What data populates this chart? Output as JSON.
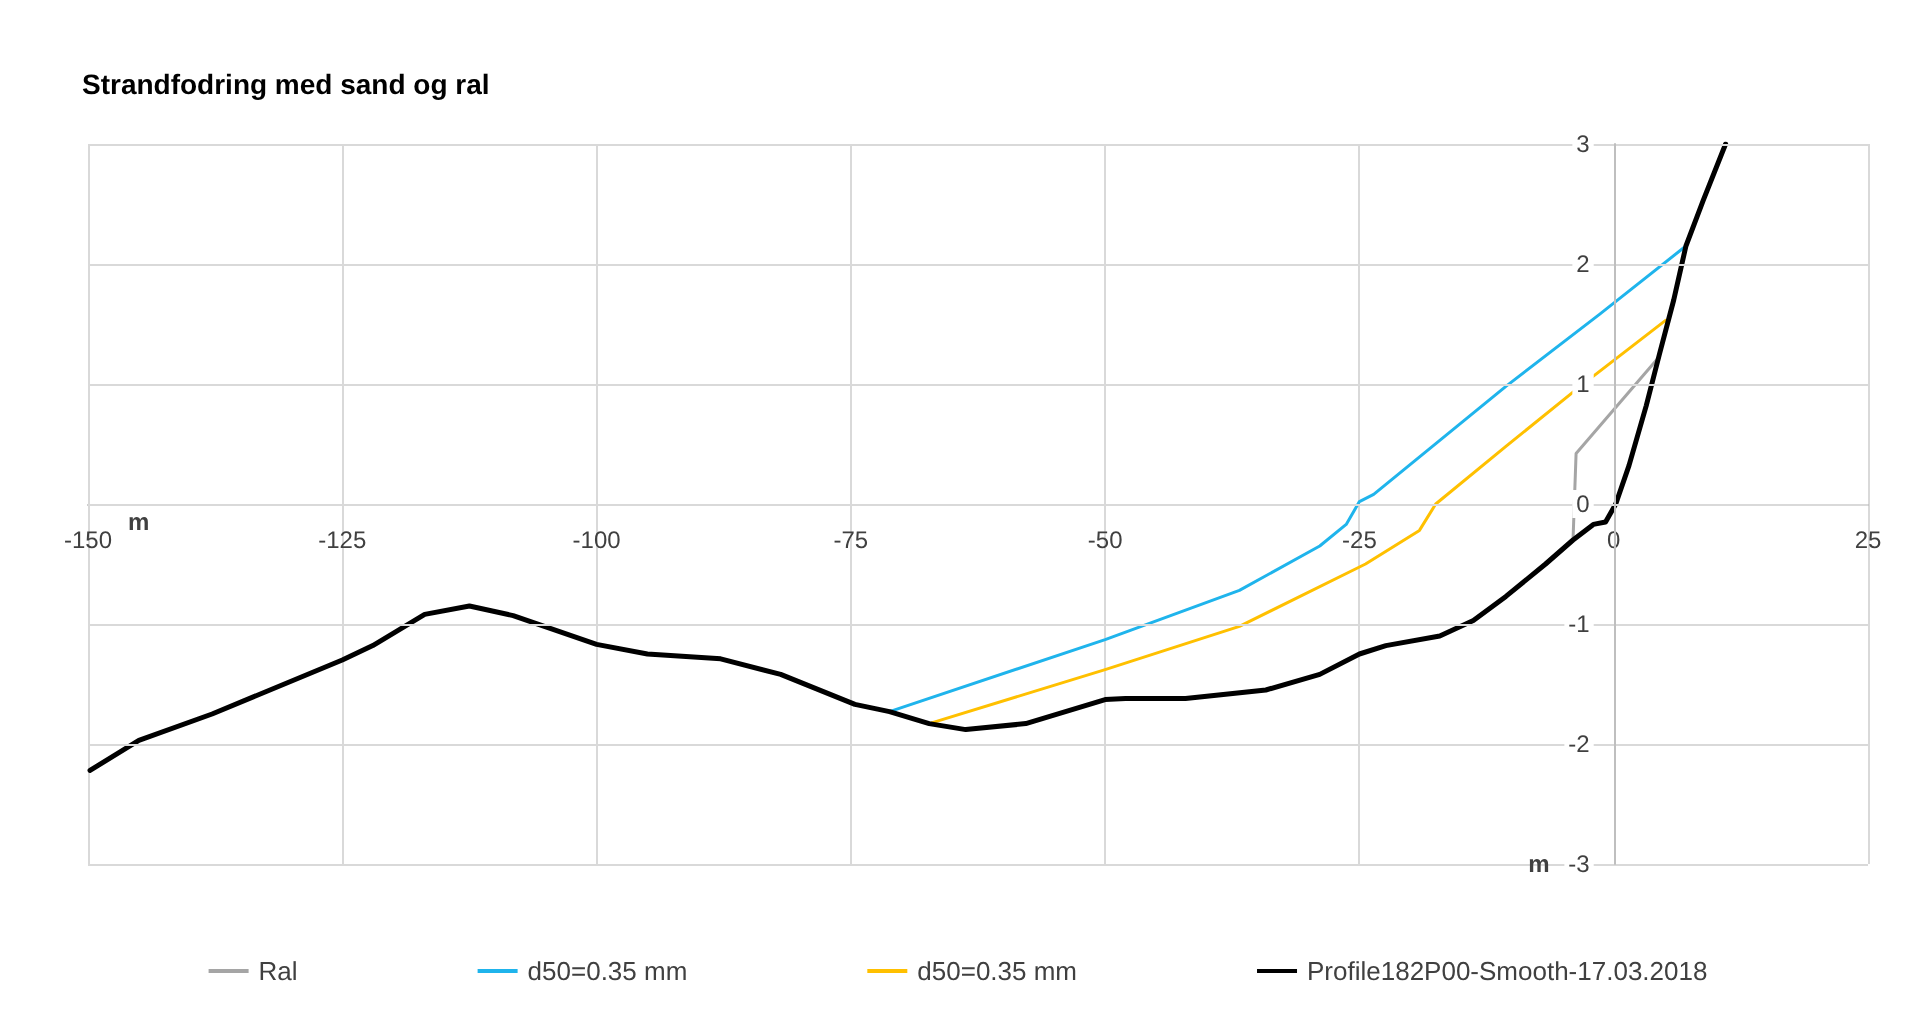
{
  "chart_data": {
    "type": "line",
    "title": "Strandfodring med sand og ral",
    "xlabel": "m",
    "ylabel": "m",
    "xlim": [
      -150,
      25
    ],
    "xticks": [
      -150,
      -125,
      -100,
      -75,
      -50,
      -25,
      0,
      25
    ],
    "ylim": [
      -3,
      3
    ],
    "yticks": [
      -3,
      -2,
      -1,
      0,
      1,
      2,
      3
    ],
    "grid": true,
    "legend": "bottom",
    "marker": "none",
    "line_style": "solid",
    "series": [
      {
        "name": "Ral",
        "color": "#a5a5a5",
        "x": [
          -4,
          -3.7,
          4.5
        ],
        "values": [
          -0.3,
          0.42,
          1.23
        ]
      },
      {
        "name": "d50=0.35 mm",
        "color": "#1fb4ec",
        "x": [
          -71.2,
          -50,
          -36.8,
          -28.9,
          -26.3,
          -25,
          -23.6,
          -10.6,
          -1.4,
          7.1
        ],
        "values": [
          -1.73,
          -1.13,
          -0.72,
          -0.35,
          -0.17,
          0.02,
          0.08,
          0.98,
          1.58,
          2.15
        ]
      },
      {
        "name": "d50=0.35 mm",
        "color": "#ffc000",
        "x": [
          -67.3,
          -50,
          -36.8,
          -24.4,
          -19.1,
          -17.5,
          -10.6,
          -3.3,
          5.1
        ],
        "values": [
          -1.83,
          -1.38,
          -1.02,
          -0.5,
          -0.22,
          0,
          0.48,
          0.98,
          1.53
        ]
      },
      {
        "name": "Profile182P00-Smooth-17.03.2018",
        "color": "#000000",
        "x": [
          -149.8,
          -145,
          -137.8,
          -125,
          -122,
          -116.9,
          -112.5,
          -108.2,
          -100,
          -95,
          -87.8,
          -81.9,
          -74.6,
          -71.2,
          -67.3,
          -63.7,
          -57.8,
          -50,
          -48,
          -42.1,
          -34.2,
          -28.9,
          -25,
          -22.4,
          -17.1,
          -13.8,
          -10.6,
          -6.7,
          -4,
          -2,
          -0.8,
          0.2,
          1.5,
          3.2,
          4.5,
          5.9,
          7.1,
          8.8,
          11
        ],
        "values": [
          -2.22,
          -1.97,
          -1.75,
          -1.3,
          -1.18,
          -0.92,
          -0.85,
          -0.93,
          -1.17,
          -1.25,
          -1.29,
          -1.42,
          -1.67,
          -1.73,
          -1.83,
          -1.88,
          -1.83,
          -1.63,
          -1.62,
          -1.62,
          -1.55,
          -1.42,
          -1.25,
          -1.18,
          -1.1,
          -0.97,
          -0.77,
          -0.5,
          -0.3,
          -0.17,
          -0.15,
          0,
          0.32,
          0.82,
          1.25,
          1.7,
          2.15,
          2.53,
          3
        ]
      }
    ]
  }
}
